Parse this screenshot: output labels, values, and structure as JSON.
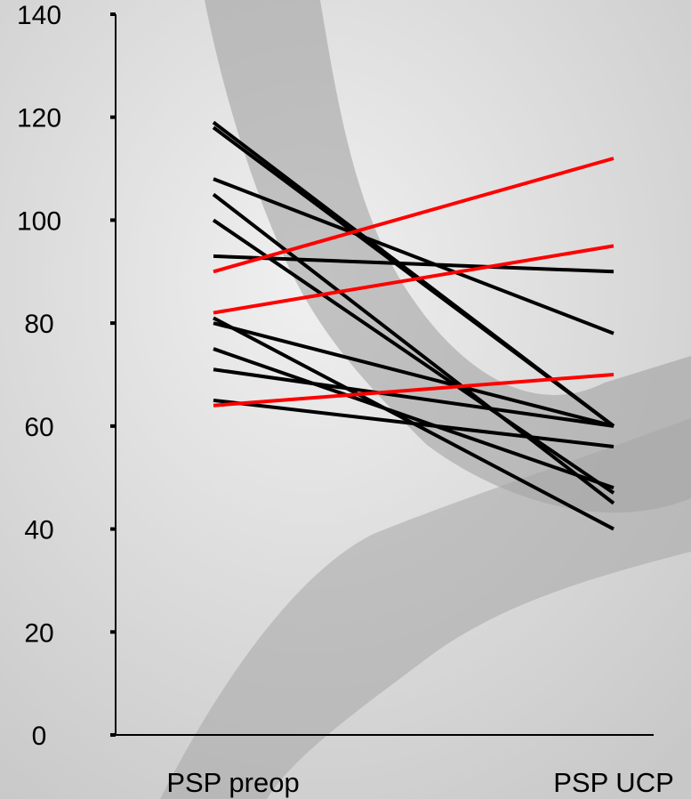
{
  "chart_data": {
    "type": "line",
    "categories": [
      "PSP preop",
      "PSP UCP"
    ],
    "ylim": [
      0,
      140
    ],
    "yticks": [
      0,
      20,
      40,
      60,
      80,
      100,
      120,
      140
    ],
    "grid": false,
    "legend": "none",
    "title": "",
    "xlabel": "",
    "ylabel": "",
    "colors": {
      "increase": "#ff0000",
      "decrease": "#000000",
      "axis": "#000000"
    },
    "series": [
      {
        "values": [
          119,
          60
        ],
        "color": "#000000"
      },
      {
        "values": [
          118,
          60
        ],
        "color": "#000000"
      },
      {
        "values": [
          108,
          78
        ],
        "color": "#000000"
      },
      {
        "values": [
          105,
          45
        ],
        "color": "#000000"
      },
      {
        "values": [
          100,
          47
        ],
        "color": "#000000"
      },
      {
        "values": [
          93,
          90
        ],
        "color": "#000000"
      },
      {
        "values": [
          81,
          40
        ],
        "color": "#000000"
      },
      {
        "values": [
          80,
          60
        ],
        "color": "#000000"
      },
      {
        "values": [
          75,
          48
        ],
        "color": "#000000"
      },
      {
        "values": [
          71,
          60
        ],
        "color": "#000000"
      },
      {
        "values": [
          65,
          56
        ],
        "color": "#000000"
      },
      {
        "values": [
          90,
          112
        ],
        "color": "#ff0000"
      },
      {
        "values": [
          82,
          95
        ],
        "color": "#ff0000"
      },
      {
        "values": [
          64,
          70
        ],
        "color": "#ff0000"
      }
    ]
  }
}
